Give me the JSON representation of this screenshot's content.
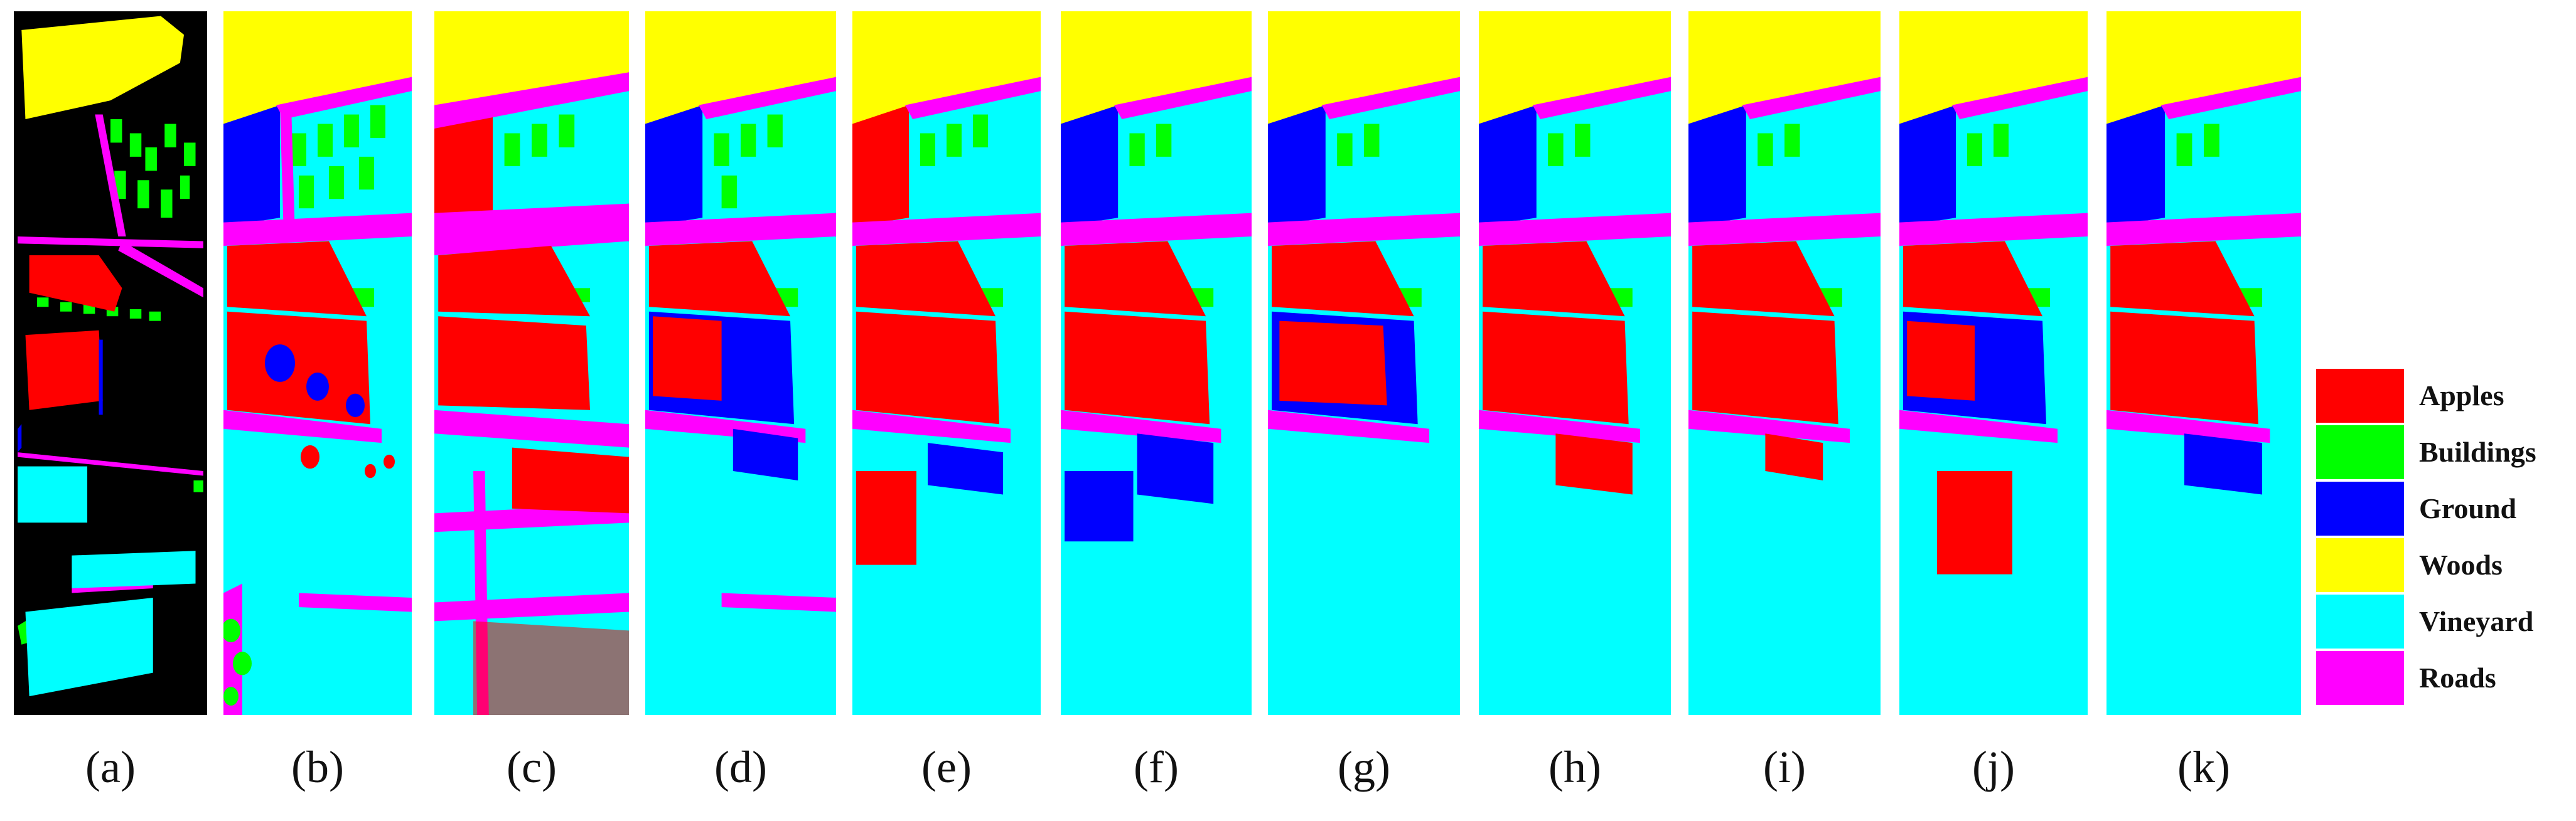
{
  "colors": {
    "apples": "#ff0000",
    "buildings": "#00ff00",
    "ground": "#0000ff",
    "woods": "#ffff00",
    "vineyard": "#00ffff",
    "roads": "#ff00ff",
    "background": "#000000"
  },
  "panels": [
    {
      "label": "(a)",
      "kind": "ground-truth"
    },
    {
      "label": "(b)",
      "kind": "classification-map"
    },
    {
      "label": "(c)",
      "kind": "classification-map"
    },
    {
      "label": "(d)",
      "kind": "classification-map"
    },
    {
      "label": "(e)",
      "kind": "classification-map"
    },
    {
      "label": "(f)",
      "kind": "classification-map"
    },
    {
      "label": "(g)",
      "kind": "classification-map"
    },
    {
      "label": "(h)",
      "kind": "classification-map"
    },
    {
      "label": "(i)",
      "kind": "classification-map"
    },
    {
      "label": "(j)",
      "kind": "classification-map"
    },
    {
      "label": "(k)",
      "kind": "classification-map"
    }
  ],
  "legend": [
    {
      "label": "Apples",
      "color": "#ff0000"
    },
    {
      "label": "Buildings",
      "color": "#00ff00"
    },
    {
      "label": "Ground",
      "color": "#0000ff"
    },
    {
      "label": "Woods",
      "color": "#ffff00"
    },
    {
      "label": "Vineyard",
      "color": "#00ffff"
    },
    {
      "label": "Roads",
      "color": "#ff00ff"
    }
  ]
}
